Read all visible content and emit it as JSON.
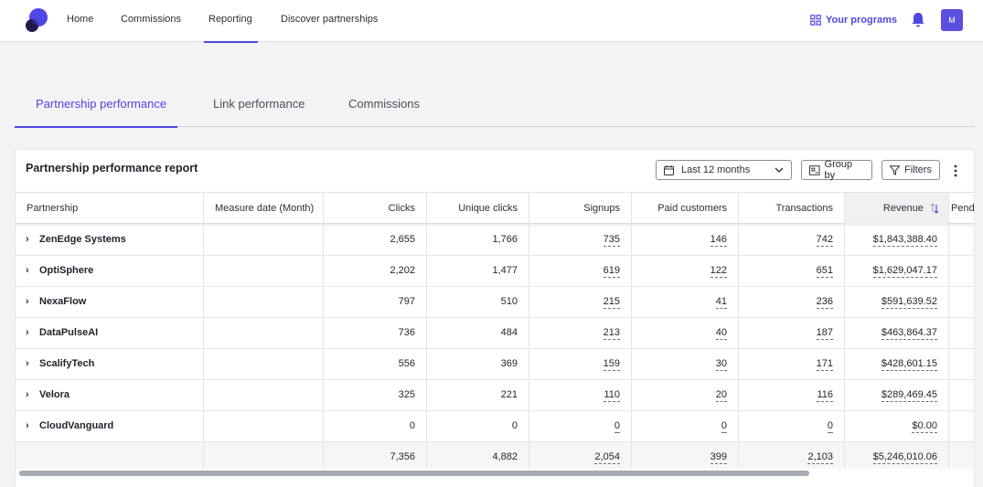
{
  "nav": {
    "items": [
      "Home",
      "Commissions",
      "Reporting",
      "Discover partnerships"
    ],
    "active": "Reporting",
    "programs_label": "Your programs",
    "avatar_initial": "M"
  },
  "tabs": [
    "Partnership performance",
    "Link performance",
    "Commissions"
  ],
  "active_tab": "Partnership performance",
  "report": {
    "title": "Partnership performance report",
    "date_range": "Last 12 months",
    "group_by_label": "Group by",
    "filters_label": "Filters"
  },
  "table": {
    "columns": [
      "Partnership",
      "Measure date (Month)",
      "Clicks",
      "Unique clicks",
      "Signups",
      "Paid customers",
      "Transactions",
      "Revenue",
      "Pendi"
    ],
    "sorted_column": "Revenue",
    "rows": [
      {
        "name": "ZenEdge Systems",
        "date": "",
        "clicks": "2,655",
        "unique": "1,766",
        "signups": "735",
        "paid": "146",
        "transactions": "742",
        "revenue": "$1,843,388.40"
      },
      {
        "name": "OptiSphere",
        "date": "",
        "clicks": "2,202",
        "unique": "1,477",
        "signups": "619",
        "paid": "122",
        "transactions": "651",
        "revenue": "$1,629,047.17"
      },
      {
        "name": "NexaFlow",
        "date": "",
        "clicks": "797",
        "unique": "510",
        "signups": "215",
        "paid": "41",
        "transactions": "236",
        "revenue": "$591,639.52"
      },
      {
        "name": "DataPulseAI",
        "date": "",
        "clicks": "736",
        "unique": "484",
        "signups": "213",
        "paid": "40",
        "transactions": "187",
        "revenue": "$463,864.37"
      },
      {
        "name": "ScalifyTech",
        "date": "",
        "clicks": "556",
        "unique": "369",
        "signups": "159",
        "paid": "30",
        "transactions": "171",
        "revenue": "$428,601.15"
      },
      {
        "name": "Velora",
        "date": "",
        "clicks": "325",
        "unique": "221",
        "signups": "110",
        "paid": "20",
        "transactions": "116",
        "revenue": "$289,469.45"
      },
      {
        "name": "CloudVanguard",
        "date": "",
        "clicks": "0",
        "unique": "0",
        "signups": "0",
        "paid": "0",
        "transactions": "0",
        "revenue": "$0.00"
      }
    ],
    "totals": {
      "clicks": "7,356",
      "unique": "4,882",
      "signups": "2,054",
      "paid": "399",
      "transactions": "2,103",
      "revenue": "$5,246,010.06"
    }
  },
  "colors": {
    "accent": "#4f46e5",
    "avatar": "#5b4fe0"
  }
}
